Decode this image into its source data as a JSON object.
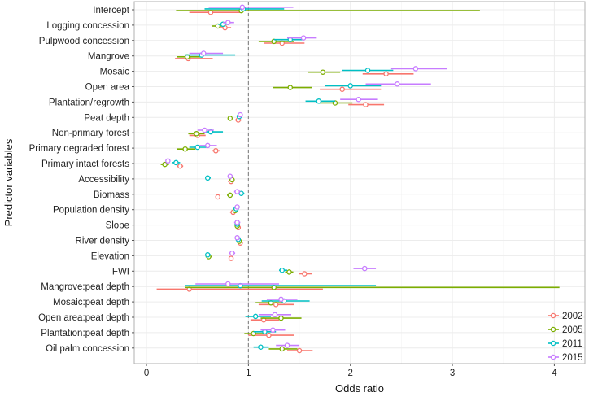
{
  "chart_data": {
    "type": "scatter",
    "xlabel": "Odds ratio",
    "ylabel": "Predictor variables",
    "xlim": [
      -0.12,
      4.3
    ],
    "xticks": [
      "0",
      "1",
      "2",
      "3",
      "4"
    ],
    "xtick_values": [
      0,
      1,
      2,
      3,
      4
    ],
    "reference_line_x": 1,
    "grid": true,
    "legend_position": "bottom-right",
    "categories": [
      "Intercept",
      "Logging concession",
      "Pulpwood concession",
      "Mangrove",
      "Mosaic",
      "Open area",
      "Plantation/regrowth",
      "Peat depth",
      "Non-primary forest",
      "Primary degraded forest",
      "Primary intact forests",
      "Accessibility",
      "Biomass",
      "Population density",
      "Slope",
      "River density",
      "Elevation",
      "FWI",
      "Mangrove:peat depth",
      "Mosaic:peat depth",
      "Open area:peat depth",
      "Plantation:peat depth",
      "Oil palm concession"
    ],
    "series": [
      {
        "name": "2002",
        "color": "#F8766D",
        "estimates": [
          0.63,
          0.77,
          1.33,
          0.41,
          2.35,
          1.92,
          2.15,
          0.9,
          0.5,
          0.68,
          0.33,
          0.83,
          0.7,
          0.85,
          0.9,
          0.92,
          0.83,
          1.55,
          0.42,
          1.27,
          1.15,
          1.2,
          1.5
        ],
        "lower": [
          0.42,
          0.7,
          1.15,
          0.28,
          2.12,
          1.7,
          1.98,
          0.87,
          0.42,
          0.64,
          0.3,
          0.8,
          0.68,
          0.82,
          0.88,
          0.9,
          0.81,
          1.5,
          0.1,
          1.1,
          1.02,
          1.0,
          1.38
        ],
        "upper": [
          0.93,
          0.83,
          1.55,
          0.65,
          2.62,
          2.3,
          2.33,
          0.93,
          0.58,
          0.72,
          0.36,
          0.86,
          0.72,
          0.88,
          0.92,
          0.94,
          0.85,
          1.62,
          1.73,
          1.45,
          1.3,
          1.45,
          1.63
        ]
      },
      {
        "name": "2005",
        "color": "#7CAE00",
        "estimates": [
          0.93,
          0.7,
          1.25,
          0.4,
          1.73,
          1.41,
          1.85,
          0.82,
          0.49,
          0.38,
          0.18,
          0.84,
          0.82,
          0.87,
          0.89,
          0.91,
          0.61,
          1.4,
          1.25,
          1.22,
          1.32,
          1.05,
          1.33
        ],
        "lower": [
          0.29,
          0.64,
          1.1,
          0.3,
          1.58,
          1.24,
          1.68,
          0.8,
          0.41,
          0.3,
          0.14,
          0.82,
          0.79,
          0.85,
          0.87,
          0.89,
          0.58,
          1.36,
          0.38,
          1.07,
          1.12,
          0.96,
          1.2
        ],
        "upper": [
          3.27,
          0.76,
          1.45,
          0.55,
          1.9,
          1.62,
          2.02,
          0.84,
          0.57,
          0.48,
          0.22,
          0.86,
          0.85,
          0.89,
          0.91,
          0.93,
          0.64,
          1.44,
          4.05,
          1.37,
          1.52,
          1.15,
          1.48
        ]
      },
      {
        "name": "2011",
        "color": "#00BFC4",
        "estimates": [
          0.95,
          0.75,
          1.41,
          0.54,
          2.17,
          2.0,
          1.69,
          0.91,
          0.63,
          0.5,
          0.29,
          0.6,
          0.93,
          0.88,
          0.89,
          0.9,
          0.6,
          1.33,
          0.92,
          1.35,
          1.07,
          1.16,
          1.12
        ],
        "lower": [
          0.57,
          0.7,
          1.25,
          0.38,
          1.92,
          1.75,
          1.56,
          0.89,
          0.55,
          0.42,
          0.25,
          0.58,
          0.9,
          0.86,
          0.87,
          0.88,
          0.58,
          1.3,
          0.38,
          1.13,
          0.97,
          1.05,
          1.05
        ],
        "upper": [
          1.35,
          0.8,
          1.55,
          0.87,
          2.42,
          2.3,
          1.85,
          0.93,
          0.75,
          0.6,
          0.33,
          0.63,
          0.96,
          0.9,
          0.91,
          0.92,
          0.63,
          1.38,
          2.25,
          1.6,
          1.22,
          1.27,
          1.2
        ]
      },
      {
        "name": "2015",
        "color": "#C77CFF",
        "estimates": [
          0.94,
          0.8,
          1.54,
          0.56,
          2.64,
          2.46,
          2.08,
          0.92,
          0.57,
          0.6,
          0.21,
          0.82,
          0.89,
          0.89,
          0.89,
          0.89,
          0.84,
          2.14,
          0.8,
          1.32,
          1.26,
          1.24,
          1.38
        ],
        "lower": [
          0.61,
          0.75,
          1.38,
          0.42,
          2.4,
          2.15,
          1.9,
          0.9,
          0.5,
          0.52,
          0.19,
          0.8,
          0.86,
          0.87,
          0.86,
          0.87,
          0.81,
          2.03,
          0.48,
          1.18,
          1.1,
          1.12,
          1.27
        ],
        "upper": [
          1.44,
          0.86,
          1.67,
          0.75,
          2.95,
          2.79,
          2.27,
          0.94,
          0.66,
          0.69,
          0.23,
          0.85,
          0.92,
          0.91,
          0.92,
          0.92,
          0.87,
          2.25,
          1.3,
          1.48,
          1.42,
          1.36,
          1.5
        ]
      }
    ]
  }
}
